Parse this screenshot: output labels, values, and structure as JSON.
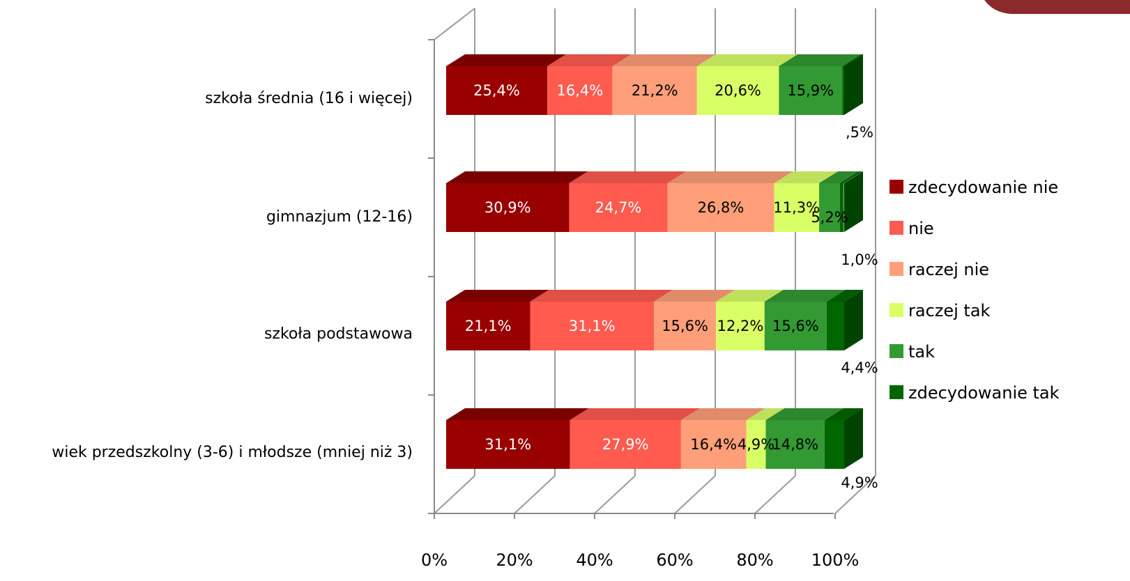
{
  "colors": {
    "zdecydowanie nie": "#990000",
    "nie": "#ff5b4f",
    "raczej nie": "#ff9f7a",
    "raczej tak": "#d9ff66",
    "tak": "#339933",
    "zdecydowanie tak": "#006600"
  },
  "chart_data": {
    "type": "bar",
    "orientation": "horizontal",
    "stacked": "100%",
    "three_d": true,
    "categories": [
      "wiek przedszkolny (3-6) i młodsze (mniej niż 3)",
      "szkoła podstawowa",
      "gimnazjum (12-16)",
      "szkoła średnia (16 i więcej)"
    ],
    "series": [
      {
        "name": "zdecydowanie nie",
        "values": [
          31.1,
          21.1,
          30.9,
          25.4
        ],
        "labels": [
          "31,1%",
          "21,1%",
          "30,9%",
          "25,4%"
        ]
      },
      {
        "name": "nie",
        "values": [
          27.9,
          31.1,
          24.7,
          16.4
        ],
        "labels": [
          "27,9%",
          "31,1%",
          "24,7%",
          "16,4%"
        ]
      },
      {
        "name": "raczej nie",
        "values": [
          16.4,
          15.6,
          26.8,
          21.2
        ],
        "labels": [
          "16,4%",
          "15,6%",
          "26,8%",
          "21,2%"
        ]
      },
      {
        "name": "raczej tak",
        "values": [
          4.9,
          12.2,
          11.3,
          20.6
        ],
        "labels": [
          "4,9%",
          "12,2%",
          "11,3%",
          "20,6%"
        ]
      },
      {
        "name": "tak",
        "values": [
          14.8,
          15.6,
          5.2,
          15.9
        ],
        "labels": [
          "14,8%",
          "15,6%",
          "5,2%",
          "15,9%"
        ]
      },
      {
        "name": "zdecydowanie tak",
        "values": [
          4.9,
          4.4,
          1.0,
          0.5
        ],
        "labels": [
          "4,9%",
          "4,4%",
          "1,0%",
          ",5%"
        ]
      }
    ],
    "x_ticks": [
      "0%",
      "20%",
      "40%",
      "60%",
      "80%",
      "100%"
    ],
    "xlim": [
      0,
      100
    ],
    "grid": true,
    "legend_position": "right"
  }
}
